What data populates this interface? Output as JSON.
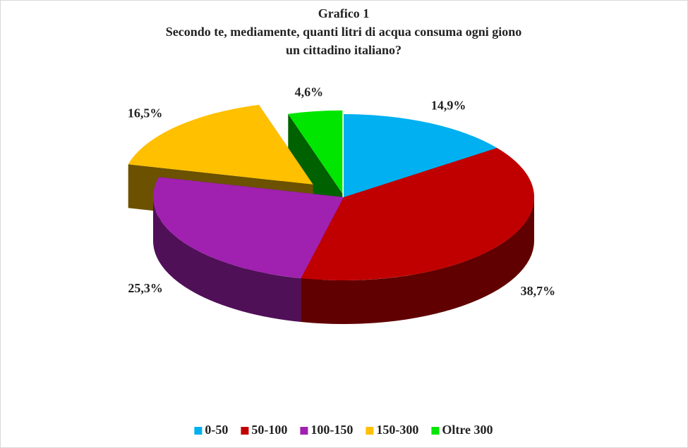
{
  "chart_data": {
    "type": "pie3d",
    "title": "Grafico 1",
    "subtitle": [
      "Secondo te, mediamente, quanti litri di acqua consuma  ogni giono",
      "un cittadino italiano?"
    ],
    "categories": [
      "0-50",
      "50-100",
      "100-150",
      "150-300",
      "Oltre 300"
    ],
    "values": [
      14.9,
      38.7,
      25.3,
      16.5,
      4.6
    ],
    "value_labels": [
      "14,9%",
      "38,7%",
      "25,3%",
      "16,5%",
      "4,6%"
    ],
    "colors": [
      "#00b0f0",
      "#c00000",
      "#a020b0",
      "#ffc000",
      "#00e600"
    ],
    "legend": "bottom"
  }
}
